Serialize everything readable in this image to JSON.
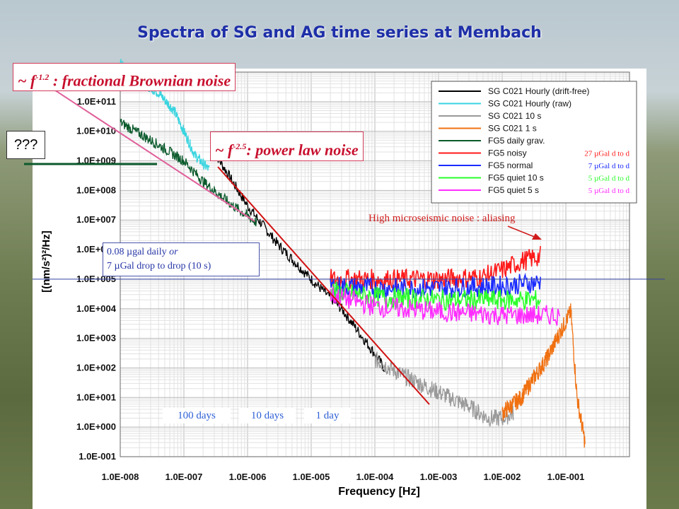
{
  "title": "Spectra of SG and AG time series at Membach",
  "annotations": {
    "fractional_prefix": "~ f",
    "fractional_exp": "-1.2",
    "fractional_suffix": " : fractional Brownian noise",
    "power_prefix": "~ f",
    "power_exp": "-2.5",
    "power_suffix": ": power law noise",
    "unknown": "???",
    "drop_line1_a": "0.08 µgal daily ",
    "drop_line1_b": "or",
    "drop_line2": "7 µGal drop to drop (10 s)",
    "microseismic": "High microseismic  noise : aliasing",
    "days_100": "100 days",
    "days_10": "10 days",
    "days_1": "1 day"
  },
  "colors": {
    "title": "#1e2fa8",
    "annotation_red": "#c8102e",
    "fractional_line": "#e0609a",
    "power_line": "#d01010",
    "reference_line": "#3040a0"
  },
  "chart_data": {
    "type": "line",
    "xlabel": "Frequency [Hz]",
    "ylabel": "[(nm/s²)²/Hz]",
    "x_scale": "log",
    "y_scale": "log",
    "xlim": [
      1e-08,
      1
    ],
    "ylim": [
      0.1,
      1000000000000.0
    ],
    "x_ticks": [
      "1.0E-008",
      "1.0E-007",
      "1.0E-006",
      "1.0E-005",
      "1.0E-004",
      "1.0E-003",
      "1.0E-002",
      "1.0E-001"
    ],
    "y_ticks": [
      "1.0E+011",
      "1.0E+010",
      "1.0E+009",
      "1.0E+008",
      "1.0E+007",
      "1.0E+006",
      "1.0E+005",
      "1.0E+004",
      "1.0E+003",
      "1.0E+002",
      "1.0E+001",
      "1.0E+000",
      "1.0E-001"
    ],
    "grid": true,
    "legend_position": "top-right",
    "series": [
      {
        "name": "SG C021 Hourly (drift-free)",
        "color": "#000000",
        "label": "",
        "points": [
          [
            3e-07,
            2000000000.0
          ],
          [
            1e-06,
            30000000.0
          ],
          [
            3e-06,
            1500000.0
          ],
          [
            1e-05,
            100000.0
          ],
          [
            3e-05,
            10000.0
          ],
          [
            0.0001,
            300.0
          ],
          [
            0.00014,
            100.0
          ]
        ]
      },
      {
        "name": "SG C021 Hourly (raw)",
        "color": "#39d5e0",
        "label": "",
        "points": [
          [
            1e-08,
            2000000000000.0
          ],
          [
            2e-08,
            500000000000.0
          ],
          [
            4e-08,
            200000000000.0
          ],
          [
            7e-08,
            50000000000.0
          ],
          [
            1e-07,
            10000000000.0
          ],
          [
            1.5e-07,
            1500000000.0
          ],
          [
            2.5e-07,
            500000000.0
          ]
        ]
      },
      {
        "name": "SG C021 10 s",
        "color": "#9a9a9a",
        "label": "",
        "points": [
          [
            0.0001,
            200.0
          ],
          [
            0.0003,
            50
          ],
          [
            0.001,
            15
          ],
          [
            0.003,
            5
          ],
          [
            0.006,
            2
          ],
          [
            0.01,
            2
          ],
          [
            0.015,
            3
          ]
        ]
      },
      {
        "name": "SG C021 1 s",
        "color": "#f07010",
        "label": "",
        "points": [
          [
            0.01,
            3
          ],
          [
            0.02,
            10
          ],
          [
            0.03,
            40
          ],
          [
            0.05,
            200
          ],
          [
            0.08,
            1500
          ],
          [
            0.12,
            8000
          ],
          [
            0.15,
            10
          ],
          [
            0.2,
            0.3
          ]
        ]
      },
      {
        "name": "FG5 daily grav.",
        "color": "#0b5a2c",
        "label": "",
        "points": [
          [
            1e-08,
            20000000000.0
          ],
          [
            3e-08,
            5000000000.0
          ],
          [
            6e-08,
            2000000000.0
          ],
          [
            1e-07,
            1000000000.0
          ],
          [
            2e-07,
            200000000.0
          ],
          [
            5e-07,
            40000000.0
          ],
          [
            1.4e-06,
            8000000.0
          ]
        ]
      },
      {
        "name": "FG5 noisy",
        "color": "#ff1a1a",
        "label": "27 µGal d to d",
        "points": [
          [
            2e-05,
            100000.0
          ],
          [
            0.0001,
            100000.0
          ],
          [
            0.001,
            100000.0
          ],
          [
            0.005,
            120000.0
          ],
          [
            0.01,
            200000.0
          ],
          [
            0.02,
            400000.0
          ],
          [
            0.04,
            600000.0
          ]
        ]
      },
      {
        "name": "FG5 normal",
        "color": "#1a2bff",
        "label": "7 µGal d to d",
        "points": [
          [
            2e-05,
            60000.0
          ],
          [
            0.0001,
            50000.0
          ],
          [
            0.001,
            50000.0
          ],
          [
            0.01,
            60000.0
          ],
          [
            0.04,
            80000.0
          ]
        ]
      },
      {
        "name": "FG5 quiet 10 s",
        "color": "#2bff2b",
        "label": "5 µGal d to d",
        "points": [
          [
            2e-05,
            40000.0
          ],
          [
            0.0001,
            25000.0
          ],
          [
            0.001,
            20000.0
          ],
          [
            0.01,
            20000.0
          ],
          [
            0.04,
            20000.0
          ]
        ]
      },
      {
        "name": "FG5 quiet 5 s",
        "color": "#ff2bff",
        "label": "5 µGal d to d",
        "points": [
          [
            2e-05,
            30000.0
          ],
          [
            0.0001,
            12000.0
          ],
          [
            0.001,
            8000.0
          ],
          [
            0.01,
            6000.0
          ],
          [
            0.04,
            6000.0
          ],
          [
            0.08,
            6000.0
          ]
        ]
      }
    ]
  }
}
